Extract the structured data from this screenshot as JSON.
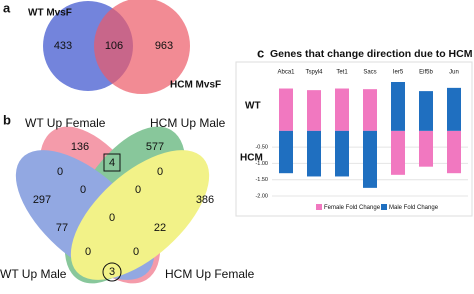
{
  "panel_a": {
    "label": "a",
    "sets": [
      "WT MvsF",
      "HCM MvsF"
    ],
    "counts": [
      433,
      106,
      963
    ]
  },
  "panel_b": {
    "label": "b",
    "sets": [
      "WT Up Female",
      "HCM Up Male",
      "WT Up Male",
      "HCM Up Female"
    ],
    "counts": [
      136,
      4,
      577,
      0,
      0,
      297,
      386,
      0,
      0,
      77,
      0,
      22,
      0,
      0,
      3
    ]
  },
  "chart_data": {
    "type": "bar",
    "panel_label": "c",
    "title": "Genes that change direction due to HCM",
    "row_labels": [
      "WT",
      "HCM"
    ],
    "categories": [
      "Abca1",
      "Tspyl4",
      "Tet1",
      "Sacs",
      "Ier5",
      "Eif5b",
      "Jun"
    ],
    "series": [
      {
        "name": "Female Fold Change",
        "color": "#f178c0",
        "values": [
          1.3,
          1.25,
          1.3,
          1.28,
          -1.35,
          -1.1,
          -1.3
        ]
      },
      {
        "name": "Male Fold Change",
        "color": "#1f6fc0",
        "values": [
          -1.3,
          -1.4,
          -1.4,
          -1.75,
          1.5,
          1.22,
          1.32
        ]
      }
    ],
    "ylim": [
      -2,
      1.5
    ],
    "yticks": [
      {
        "value": -0.5,
        "label": "-0.50"
      },
      {
        "value": -1,
        "label": "-1.00"
      },
      {
        "value": -1.5,
        "label": "-1.50"
      },
      {
        "value": -2,
        "label": "-2.00"
      }
    ],
    "grid": true,
    "legend": "bottom"
  }
}
